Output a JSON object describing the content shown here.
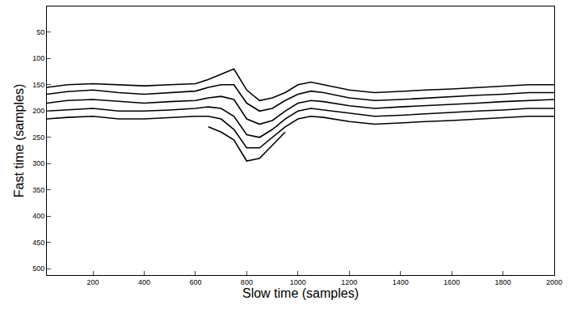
{
  "chart_data": {
    "type": "line",
    "x_label": "Slow time (samples)",
    "y_label": "Fast time (samples)",
    "x": [
      20,
      100,
      200,
      300,
      400,
      500,
      600,
      650,
      700,
      750,
      800,
      850,
      900,
      950,
      1000,
      1050,
      1100,
      1200,
      1300,
      1400,
      1500,
      1600,
      1700,
      1800,
      1900,
      2000
    ],
    "series": [
      {
        "color": "#000000",
        "values": [
          155,
          150,
          148,
          150,
          152,
          150,
          148,
          140,
          130,
          120,
          160,
          180,
          175,
          165,
          150,
          145,
          150,
          160,
          165,
          162,
          160,
          158,
          155,
          152,
          150,
          150
        ]
      },
      {
        "color": "#000000",
        "values": [
          168,
          163,
          160,
          165,
          168,
          165,
          162,
          155,
          150,
          150,
          185,
          200,
          195,
          180,
          168,
          162,
          165,
          175,
          180,
          178,
          175,
          172,
          170,
          168,
          165,
          165
        ]
      },
      {
        "color": "#000000",
        "values": [
          185,
          180,
          178,
          182,
          185,
          182,
          180,
          175,
          172,
          178,
          215,
          225,
          218,
          200,
          185,
          180,
          182,
          190,
          195,
          192,
          190,
          188,
          185,
          182,
          180,
          178
        ]
      },
      {
        "color": "#000000",
        "values": [
          200,
          198,
          195,
          200,
          200,
          198,
          195,
          192,
          195,
          210,
          245,
          250,
          235,
          215,
          200,
          195,
          198,
          205,
          210,
          208,
          205,
          202,
          200,
          198,
          195,
          195
        ]
      },
      {
        "color": "#000000",
        "values": [
          215,
          212,
          210,
          215,
          215,
          212,
          210,
          210,
          215,
          235,
          270,
          270,
          250,
          230,
          215,
          210,
          212,
          220,
          225,
          222,
          220,
          218,
          215,
          212,
          210,
          210
        ]
      },
      {
        "color": "#000000",
        "values": [
          null,
          null,
          null,
          null,
          null,
          null,
          null,
          230,
          240,
          255,
          295,
          290,
          265,
          240,
          null,
          null,
          null,
          null,
          null,
          null,
          null,
          null,
          null,
          null,
          null,
          null
        ]
      }
    ],
    "xlim": [
      20,
      2000
    ],
    "ylim": [
      512,
      1
    ],
    "xticks": [
      200,
      400,
      600,
      800,
      1000,
      1200,
      1400,
      1600,
      1800,
      2000
    ],
    "yticks": [
      50,
      100,
      150,
      200,
      250,
      300,
      350,
      400,
      450,
      500
    ],
    "grid": false
  }
}
